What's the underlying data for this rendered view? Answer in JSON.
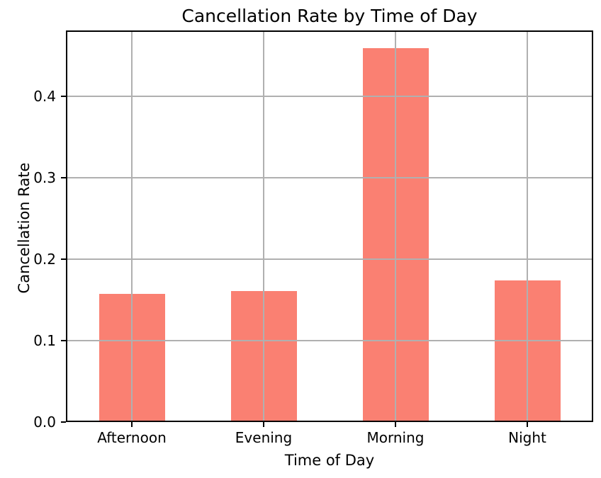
{
  "chart_data": {
    "type": "bar",
    "title": "Cancellation Rate by Time of Day",
    "xlabel": "Time of Day",
    "ylabel": "Cancellation Rate",
    "categories": [
      "Afternoon",
      "Evening",
      "Morning",
      "Night"
    ],
    "values": [
      0.157,
      0.161,
      0.459,
      0.174
    ],
    "ylim": [
      0,
      0.481
    ],
    "yticks": [
      0.0,
      0.1,
      0.2,
      0.3,
      0.4
    ],
    "ytick_labels": [
      "0.0",
      "0.1",
      "0.2",
      "0.3",
      "0.4"
    ],
    "grid": true,
    "grid_above_bars": true,
    "legend": "none",
    "bar_color": "#FA8072",
    "grid_color": "#b0b0b0",
    "axis_color": "#000000",
    "background_color": "#ffffff"
  }
}
